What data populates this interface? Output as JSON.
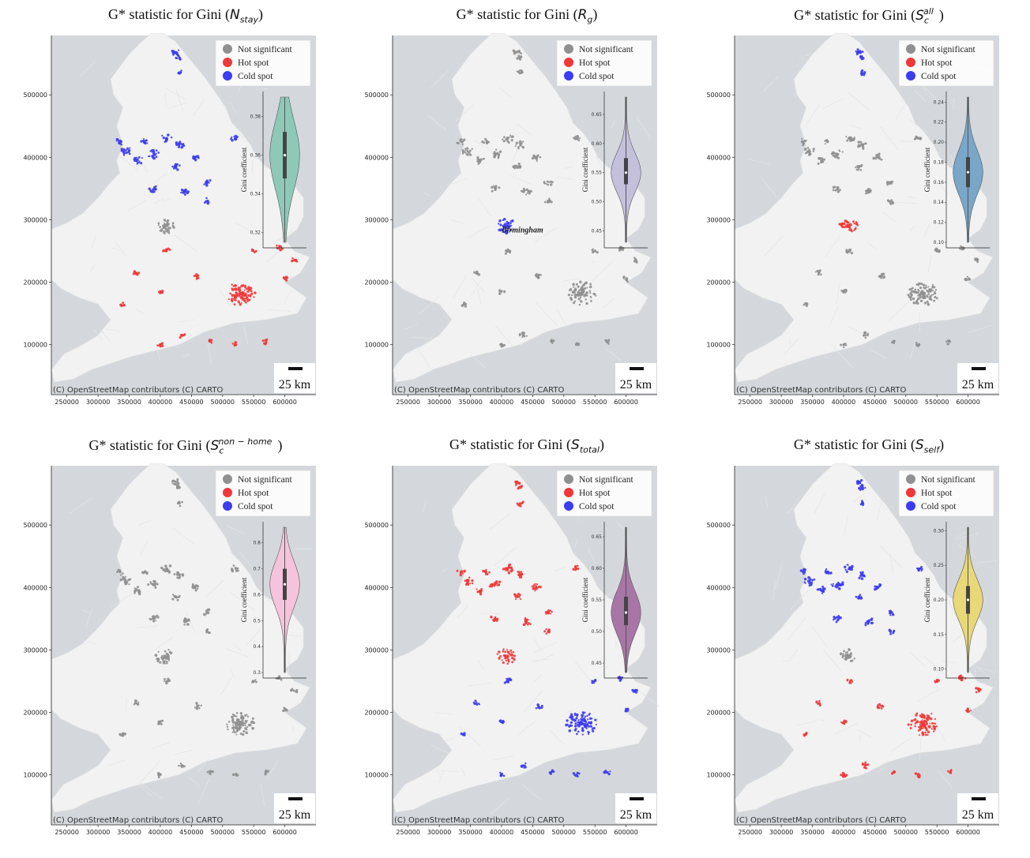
{
  "legend": {
    "not_significant": "Not significant",
    "hot_spot": "Hot spot",
    "cold_spot": "Cold spot"
  },
  "colors": {
    "not_significant": "#909090",
    "hot_spot": "#f03838",
    "cold_spot": "#3c3cf0",
    "land": "#f2f2f2",
    "sea": "#d4d8dc"
  },
  "attribution": "(C) OpenStreetMap contributors (C) CARTO",
  "scale_bar_label": "25 km",
  "violin_ylabel": "Gini coefficient",
  "x_ticks": [
    "250000",
    "300000",
    "350000",
    "400000",
    "450000",
    "500000",
    "550000",
    "600000"
  ],
  "y_ticks": [
    "100000",
    "200000",
    "300000",
    "400000",
    "500000"
  ],
  "panels": [
    {
      "id": "nstay",
      "title_prefix": "G* statistic for Gini (",
      "title_base": "N",
      "title_sub": "stay",
      "title_sup": "",
      "title_suffix": ")",
      "violin_color": "#8ec9b8",
      "violin_ticks": [
        "0.32",
        "0.34",
        "0.36",
        "0.38"
      ],
      "violin_min": 0.315,
      "violin_max": 0.39,
      "violin_q1": 0.348,
      "violin_median": 0.36,
      "violin_q3": 0.372,
      "city_label": "",
      "cluster_status": {
        "london": "hot",
        "birmingham": "ns",
        "north": "cold",
        "south": "hot",
        "far_north": "cold"
      }
    },
    {
      "id": "rg",
      "title_prefix": "G* statistic for Gini (",
      "title_base": "R",
      "title_sub": "g",
      "title_sup": "",
      "title_suffix": ")",
      "violin_color": "#c4c0dc",
      "violin_ticks": [
        "0.45",
        "0.50",
        "0.55",
        "0.60",
        "0.65"
      ],
      "violin_min": 0.43,
      "violin_max": 0.68,
      "violin_q1": 0.53,
      "violin_median": 0.55,
      "violin_q3": 0.575,
      "city_label": "Birmingham",
      "cluster_status": {
        "london": "ns",
        "birmingham": "cold",
        "north": "ns",
        "south": "ns",
        "far_north": "ns"
      }
    },
    {
      "id": "sall",
      "title_prefix": "G* statistic for Gini (",
      "title_base": "S",
      "title_sub": "c",
      "title_sup": "all",
      "title_suffix": ")",
      "violin_color": "#7aa6c8",
      "violin_ticks": [
        "0.10",
        "0.12",
        "0.14",
        "0.16",
        "0.18",
        "0.20",
        "0.22",
        "0.24"
      ],
      "violin_min": 0.1,
      "violin_max": 0.245,
      "violin_q1": 0.155,
      "violin_median": 0.17,
      "violin_q3": 0.185,
      "city_label": "",
      "cluster_status": {
        "london": "ns",
        "birmingham": "hot",
        "north": "ns",
        "south": "ns",
        "far_north": "cold"
      }
    },
    {
      "id": "snonhome",
      "title_prefix": "G* statistic for Gini (",
      "title_base": "S",
      "title_sub": "c",
      "title_sup": "non − home",
      "title_suffix": ")",
      "violin_color": "#f5c4dc",
      "violin_ticks": [
        "0.3",
        "0.4",
        "0.5",
        "0.6",
        "0.7",
        "0.8"
      ],
      "violin_min": 0.3,
      "violin_max": 0.86,
      "violin_q1": 0.58,
      "violin_median": 0.64,
      "violin_q3": 0.7,
      "city_label": "",
      "cluster_status": {
        "london": "ns",
        "birmingham": "ns",
        "north": "ns",
        "south": "ns",
        "far_north": "ns"
      }
    },
    {
      "id": "stotal",
      "title_prefix": "G* statistic for Gini (",
      "title_base": "S",
      "title_sub": "total",
      "title_sup": "",
      "title_suffix": ")",
      "violin_color": "#a876a6",
      "violin_ticks": [
        "0.45",
        "0.50",
        "0.55",
        "0.60",
        "0.65"
      ],
      "violin_min": 0.435,
      "violin_max": 0.665,
      "violin_q1": 0.51,
      "violin_median": 0.53,
      "violin_q3": 0.555,
      "city_label": "",
      "cluster_status": {
        "london": "cold",
        "birmingham": "hot",
        "north": "hot",
        "south": "cold",
        "far_north": "hot"
      }
    },
    {
      "id": "sself",
      "title_prefix": "G* statistic for Gini (",
      "title_base": "S",
      "title_sub": "self",
      "title_sup": "",
      "title_suffix": ")",
      "violin_color": "#e8d878",
      "violin_ticks": [
        "0.10",
        "0.15",
        "0.20",
        "0.25",
        "0.30"
      ],
      "violin_min": 0.095,
      "violin_max": 0.305,
      "violin_q1": 0.18,
      "violin_median": 0.2,
      "violin_q3": 0.22,
      "city_label": "",
      "cluster_status": {
        "london": "hot",
        "birmingham": "ns",
        "north": "cold",
        "south": "hot",
        "far_north": "cold"
      }
    }
  ]
}
